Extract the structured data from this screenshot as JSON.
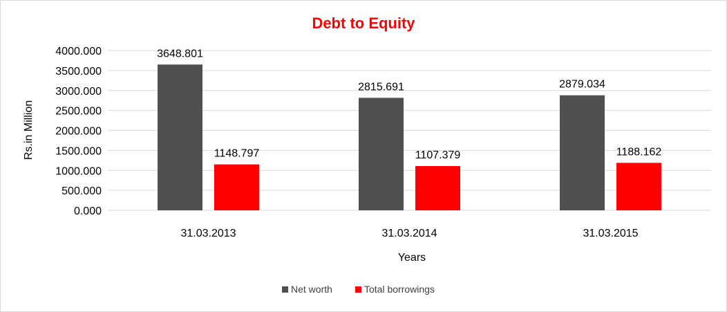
{
  "chart_data": {
    "type": "bar",
    "title": "Debt to Equity",
    "xlabel": "Years",
    "ylabel": "Rs.in Million",
    "categories": [
      "31.03.2013",
      "31.03.2014",
      "31.03.2015"
    ],
    "series": [
      {
        "name": "Net worth",
        "color": "#505050",
        "values": [
          3648.801,
          2815.691,
          2879.034
        ],
        "labels": [
          "3648.801",
          "2815.691",
          "2879.034"
        ]
      },
      {
        "name": "Total borrowings",
        "color": "#ff0000",
        "values": [
          1148.797,
          1107.379,
          1188.162
        ],
        "labels": [
          "1148.797",
          "1107.379",
          "1188.162"
        ]
      }
    ],
    "ylim": [
      0,
      4000
    ],
    "yticks": [
      0,
      500,
      1000,
      1500,
      2000,
      2500,
      3000,
      3500,
      4000
    ],
    "ytick_labels": [
      "0.000",
      "500.000",
      "1000.000",
      "1500.000",
      "2000.000",
      "2500.000",
      "3000.000",
      "3500.000",
      "4000.000"
    ],
    "grid": true,
    "legend_position": "bottom-center",
    "title_color": "#ff0000",
    "gridline_color": "#d9d9d9"
  }
}
